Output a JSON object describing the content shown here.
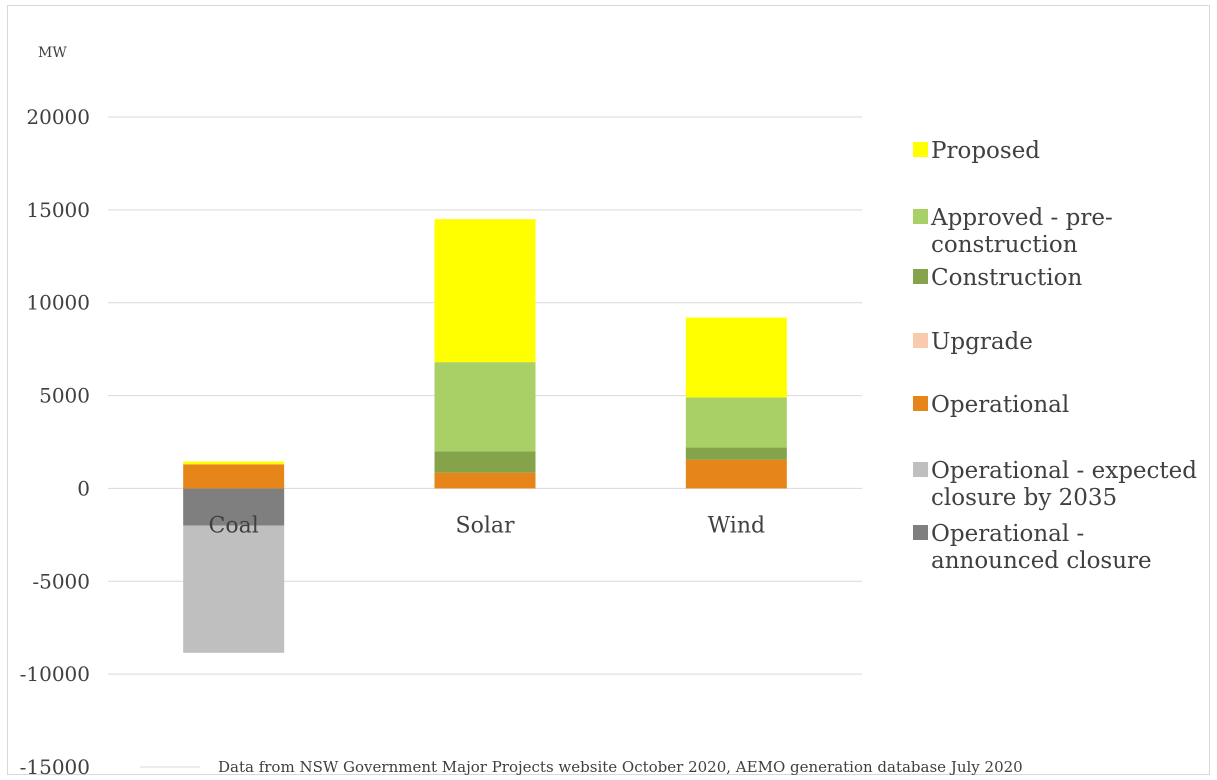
{
  "chart_data": {
    "type": "bar",
    "stacked": true,
    "title": "",
    "ylabel": "MW",
    "xlabel": "",
    "categories": [
      "Coal",
      "Solar",
      "Wind"
    ],
    "ylim": [
      -15000,
      20000
    ],
    "yticks": [
      20000,
      15000,
      10000,
      5000,
      0,
      -5000,
      -10000,
      -15000
    ],
    "grid": true,
    "legend_position": "right",
    "series": [
      {
        "name": "Operational - announced closure",
        "color": "#7f7f7f",
        "values": [
          -2000,
          0,
          0
        ]
      },
      {
        "name": "Operational - expected closure by 2035",
        "color": "#bfbfbf",
        "values": [
          -6850,
          0,
          0
        ]
      },
      {
        "name": "Operational",
        "color": "#e6861a",
        "values": [
          1300,
          850,
          1550
        ]
      },
      {
        "name": "Upgrade",
        "color": "#f8cbad",
        "values": [
          0,
          0,
          0
        ]
      },
      {
        "name": "Construction",
        "color": "#84a34a",
        "values": [
          0,
          1150,
          650
        ]
      },
      {
        "name": "Approved - pre-construction",
        "color": "#a9d066",
        "values": [
          0,
          4800,
          2700
        ]
      },
      {
        "name": "Proposed",
        "color": "#ffff00",
        "values": [
          150,
          7700,
          4300
        ]
      }
    ],
    "legend_order": [
      "Proposed",
      "Approved - pre-construction",
      "Construction",
      "Upgrade",
      "Operational",
      "Operational - expected closure by 2035",
      "Operational - announced closure"
    ],
    "source_note": "Data from NSW Government Major Projects website October 2020, AEMO generation database July 2020"
  }
}
